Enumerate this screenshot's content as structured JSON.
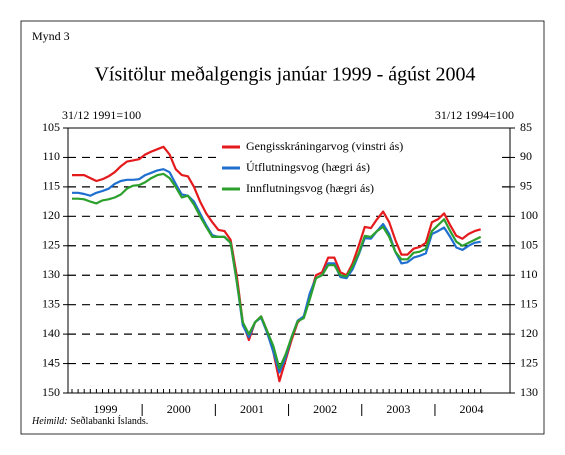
{
  "chart_data": {
    "type": "line",
    "figure_label": "Mynd 3",
    "title": "Vísitölur meðalgengis janúar 1999 - ágúst 2004",
    "y_axis_label": "31/12 1991=100",
    "y2_axis_label": "31/12 1994=100",
    "source_label": "Heimild:",
    "source_text": "Seðlabanki Íslands.",
    "categories": [
      null,
      null,
      null,
      null,
      null,
      null,
      null,
      null,
      null,
      null,
      null,
      null,
      null,
      null,
      null,
      null,
      null,
      null,
      null,
      null,
      null,
      null,
      null,
      null,
      null,
      null,
      null,
      null,
      null,
      null,
      null,
      null,
      null,
      null,
      null,
      null,
      null,
      null,
      null,
      null,
      null,
      null,
      null,
      null,
      null,
      null,
      null,
      null,
      null,
      null,
      null,
      null,
      null,
      null,
      null,
      null,
      null,
      null,
      null,
      null,
      null,
      null,
      null,
      null,
      null,
      null,
      null,
      null
    ],
    "year_labels": [
      "1999",
      "2000",
      "2001",
      "2002",
      "2003",
      "2004"
    ],
    "ylim": [
      105,
      150
    ],
    "yticks": [
      105,
      110,
      115,
      120,
      125,
      130,
      135,
      140,
      145,
      150
    ],
    "y2lim": [
      85,
      130
    ],
    "y2ticks": [
      85,
      90,
      95,
      100,
      105,
      110,
      115,
      120,
      125,
      130
    ],
    "inverted_y": true,
    "grid": true,
    "legend": "top-right",
    "series": [
      {
        "name": "Gengisskráningarvog (vinstri ás)",
        "color": "#e41a1c",
        "axis": "y",
        "values": [
          113,
          113,
          113,
          113.5,
          114,
          113.7,
          113.2,
          112.5,
          111.5,
          110.7,
          110.5,
          110.3,
          109.5,
          109,
          108.6,
          108.2,
          109.5,
          112,
          113,
          113.2,
          115,
          117.5,
          119.5,
          121,
          122.3,
          122.5,
          124,
          130,
          138,
          141,
          138,
          137,
          139.5,
          143,
          148,
          144.5,
          141,
          138,
          137,
          133.5,
          130,
          129.5,
          127,
          127,
          129.5,
          130,
          128,
          125,
          121.8,
          122,
          120.5,
          119.2,
          121,
          124,
          126.5,
          126.5,
          125.5,
          125.2,
          124.5,
          121,
          120.5,
          119.5,
          121.5,
          123.3,
          123.8,
          123,
          122.5,
          122.2
        ]
      },
      {
        "name": "Útflutningsvog (hægri ás)",
        "color": "#1f6fd0",
        "axis": "y2",
        "values": [
          96,
          96,
          96.2,
          96.5,
          96,
          95.7,
          95.3,
          94.5,
          94,
          93.8,
          93.8,
          93.7,
          93,
          92.6,
          92.2,
          92,
          92.5,
          94.5,
          96.3,
          96.5,
          97.5,
          99.5,
          101.5,
          103.2,
          103.5,
          103.5,
          104.5,
          111,
          118.5,
          120.5,
          118,
          117.2,
          119.8,
          123,
          126.5,
          124,
          120.5,
          117.7,
          117,
          113,
          110.5,
          110,
          108,
          108,
          110.3,
          110.5,
          109,
          106.5,
          103.7,
          103.8,
          102.5,
          101.3,
          103,
          106,
          108,
          107.8,
          107,
          106.7,
          106.3,
          103,
          102.5,
          101.9,
          103.5,
          105.3,
          105.7,
          105,
          104.5,
          104.3
        ]
      },
      {
        "name": "Innflutningsvog (hægri ás)",
        "color": "#2ca02c",
        "axis": "y2",
        "values": [
          97,
          97,
          97.1,
          97.5,
          97.8,
          97.3,
          97.1,
          96.8,
          96.3,
          95.3,
          94.8,
          94.7,
          94.2,
          93.5,
          93,
          92.8,
          93.5,
          95,
          96.8,
          96.5,
          98,
          100,
          101.8,
          103.5,
          103.5,
          103.5,
          104.5,
          111,
          118,
          120,
          118,
          117,
          119.5,
          122,
          125.8,
          123.5,
          120.5,
          117.8,
          117.3,
          114,
          110.5,
          110,
          108.3,
          108.3,
          110,
          110.2,
          108.5,
          106.3,
          103.3,
          103.5,
          102.5,
          101.8,
          103.5,
          106,
          107.3,
          107.3,
          106.2,
          106,
          105.5,
          102.5,
          101.5,
          100.5,
          102.5,
          104.3,
          105,
          104.5,
          104,
          103.5
        ]
      }
    ]
  }
}
